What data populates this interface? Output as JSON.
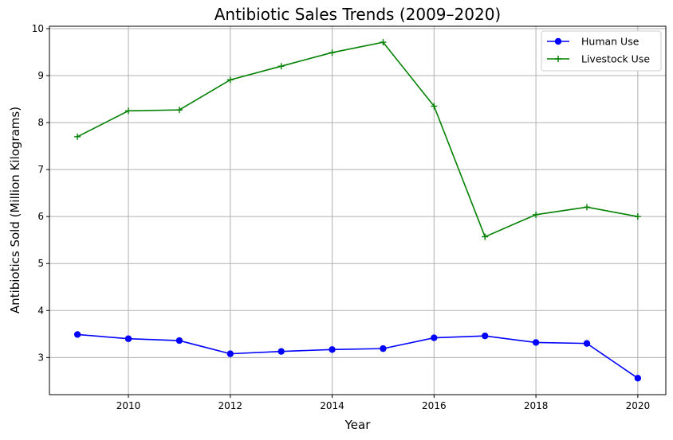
{
  "chart_data": {
    "type": "line",
    "title": "Antibiotic Sales Trends (2009–2020)",
    "xlabel": "Year",
    "ylabel": "Antibiotics Sold (Million Kilograms)",
    "x": [
      2009,
      2010,
      2011,
      2012,
      2013,
      2014,
      2015,
      2016,
      2017,
      2018,
      2019,
      2020
    ],
    "xlim": [
      2008.45,
      2020.55
    ],
    "ylim": [
      2.21,
      10.05
    ],
    "xticks": [
      "2010",
      "2012",
      "2014",
      "2016",
      "2018",
      "2020"
    ],
    "yticks": [
      "3",
      "4",
      "5",
      "6",
      "7",
      "8",
      "9",
      "10"
    ],
    "grid": true,
    "legend_position": "top-right",
    "series": [
      {
        "name": "Human Use",
        "color": "#0000ff",
        "marker": "circle",
        "values": [
          3.49,
          3.4,
          3.36,
          3.08,
          3.13,
          3.17,
          3.19,
          3.42,
          3.46,
          3.32,
          3.3,
          2.56
        ]
      },
      {
        "name": "Livestock Use",
        "color": "#008000",
        "marker": "plus",
        "values": [
          7.7,
          8.25,
          8.27,
          8.91,
          9.2,
          9.49,
          9.71,
          8.35,
          5.57,
          6.04,
          6.2,
          6.0
        ]
      }
    ]
  }
}
